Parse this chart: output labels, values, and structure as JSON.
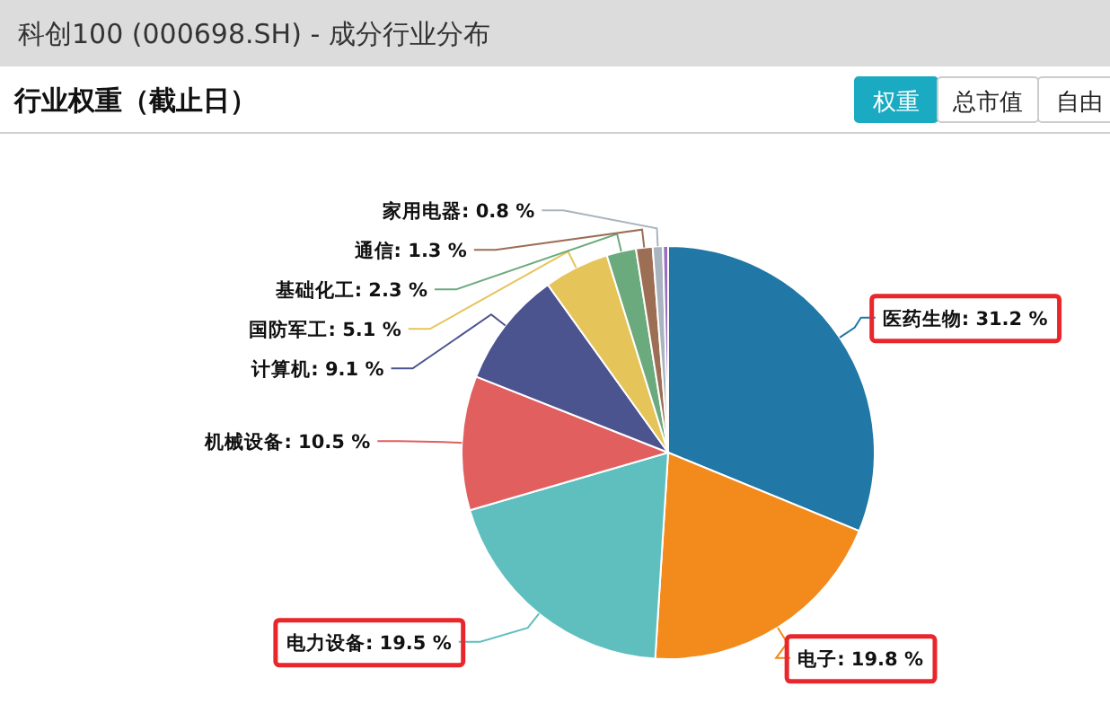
{
  "chart_data": {
    "type": "pie",
    "title": "科创100 (000698.SH) - 成分行业分布",
    "subtitle": "行业权重（截止日）",
    "annotations": [
      "权重",
      "总市值",
      "自由"
    ],
    "categories": [
      "医药生物",
      "电子",
      "电力设备",
      "机械设备",
      "计算机",
      "国防军工",
      "基础化工",
      "通信",
      "家用电器",
      null
    ],
    "values": [
      31.2,
      19.8,
      19.5,
      10.5,
      9.1,
      5.1,
      2.3,
      1.3,
      0.8,
      0.4
    ],
    "value_labels": [
      "31.2 %",
      "19.8 %",
      "19.5 %",
      "10.5 %",
      "9.1 %",
      "5.1 %",
      "2.3 %",
      "1.3 %",
      "0.8 %",
      null
    ],
    "colors": [
      "#2177a5",
      "#f28a1c",
      "#5fbfbf",
      "#e25f5f",
      "#4b548f",
      "#e5c45a",
      "#6aaa7c",
      "#9c6e53",
      "#a9b4bf",
      "#9a6fc1"
    ]
  }
}
